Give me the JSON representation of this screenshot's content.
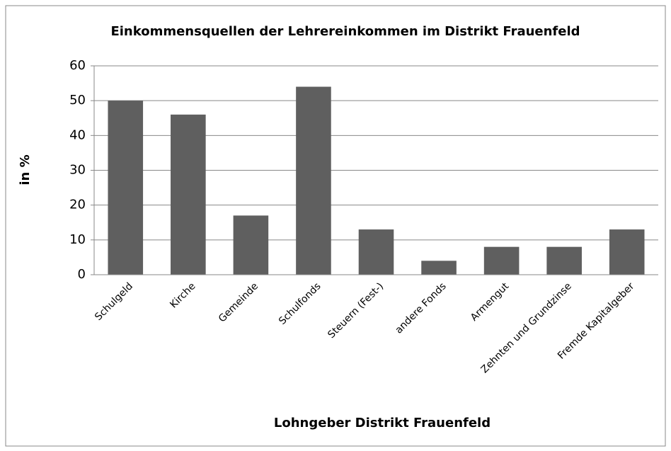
{
  "chart_data": {
    "type": "bar",
    "title": "Einkommensquellen der Lehrereinkommen im Distrikt Frauenfeld",
    "x_label": "Lohngeber Distrikt Frauenfeld",
    "y_label": "in %",
    "categories": [
      "Schulgeld",
      "Kirche",
      "Gemeinde",
      "Schulfonds",
      "Steuern (Fest-)",
      "andere Fonds",
      "Armengut",
      "Zehnten und Grundzinse",
      "Fremde Kapitalgeber"
    ],
    "values": [
      50,
      46,
      17,
      54,
      13,
      4,
      8,
      8,
      13
    ],
    "color": "#5f5f5f",
    "ylim": [
      0,
      60
    ],
    "yticks": [
      0,
      10,
      20,
      30,
      40,
      50,
      60
    ],
    "grid": true
  }
}
